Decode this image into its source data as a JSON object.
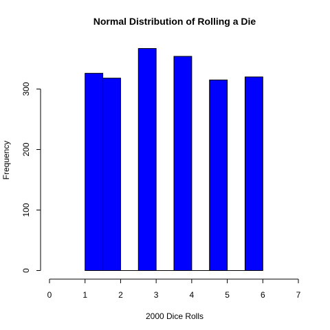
{
  "chart_data": {
    "type": "bar",
    "title": "Normal Distribution of Rolling a Die",
    "xlabel": "2000 Dice Rolls",
    "ylabel": "Frequency",
    "bins": [
      {
        "start": 1.0,
        "end": 1.5,
        "count": 326
      },
      {
        "start": 1.5,
        "end": 2.0,
        "count": 318
      },
      {
        "start": 2.0,
        "end": 2.5,
        "count": 0
      },
      {
        "start": 2.5,
        "end": 3.0,
        "count": 367
      },
      {
        "start": 3.0,
        "end": 3.5,
        "count": 0
      },
      {
        "start": 3.5,
        "end": 4.0,
        "count": 354
      },
      {
        "start": 4.0,
        "end": 4.5,
        "count": 0
      },
      {
        "start": 4.5,
        "end": 5.0,
        "count": 315
      },
      {
        "start": 5.0,
        "end": 5.5,
        "count": 0
      },
      {
        "start": 5.5,
        "end": 6.0,
        "count": 320
      }
    ],
    "xlim": [
      0,
      7
    ],
    "ylim": [
      0,
      390
    ],
    "x_ticks": [
      "0",
      "1",
      "2",
      "3",
      "4",
      "5",
      "6",
      "7"
    ],
    "y_ticks": [
      "0",
      "100",
      "200",
      "300"
    ],
    "bar_color": "#0000ff",
    "bar_border_color": "#000000",
    "grid": false
  }
}
